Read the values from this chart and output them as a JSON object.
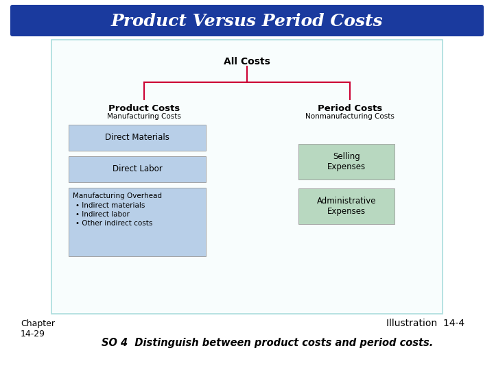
{
  "title": "Product Versus Period Costs",
  "title_bg": "#1a3a9e",
  "title_color": "#ffffff",
  "title_fontsize": 18,
  "diagram_border": "#aadddd",
  "diagram_bg": "#f8fdfd",
  "all_costs_label": "All Costs",
  "product_costs_label": "Product Costs",
  "product_costs_sub": "Manufacturing Costs",
  "period_costs_label": "Period Costs",
  "period_costs_sub": "Nonmanufacturing Costs",
  "left_box_labels": [
    "Direct Materials",
    "Direct Labor"
  ],
  "left_box_overhead_title": "Manufacturing Overhead",
  "left_box_overhead_items": [
    "• Indirect materials",
    "• Indirect labor",
    "• Other indirect costs"
  ],
  "right_box_labels": [
    "Selling\nExpenses",
    "Administrative\nExpenses"
  ],
  "left_box_color": "#b8cfe8",
  "right_box_color": "#b8d8c0",
  "connector_color": "#cc0033",
  "chapter_text": "Chapter\n14-29",
  "illustration_text": "Illustration  14-4",
  "so_text": "SO 4  Distinguish between product costs and period costs.",
  "footer_fontsize": 9,
  "illustration_fontsize": 10
}
